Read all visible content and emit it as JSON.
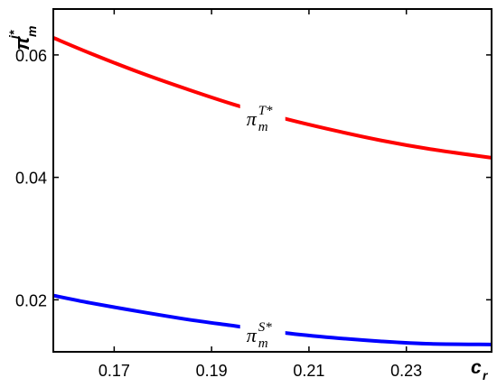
{
  "chart_data": {
    "type": "line",
    "xlabel": {
      "base": "c",
      "sub": "r"
    },
    "ylabel": {
      "base": "π",
      "sup": "j*",
      "sub": "m"
    },
    "xlim": [
      0.1575,
      0.2475
    ],
    "ylim": [
      0.0115,
      0.0675
    ],
    "xticks": [
      "0.17",
      "0.19",
      "0.21",
      "0.23"
    ],
    "xtick_values": [
      0.17,
      0.19,
      0.21,
      0.23
    ],
    "yticks": [
      "0.02",
      "0.04",
      "0.06"
    ],
    "ytick_values": [
      0.02,
      0.04,
      0.06
    ],
    "grid": false,
    "legend": "none",
    "series": [
      {
        "color": "#ff0000",
        "x": [
          0.1575,
          0.165,
          0.175,
          0.185,
          0.195,
          0.205,
          0.215,
          0.225,
          0.235,
          0.2475
        ],
        "y": [
          0.0628,
          0.0603,
          0.0572,
          0.0544,
          0.0518,
          0.0496,
          0.0477,
          0.046,
          0.0446,
          0.0432
        ]
      },
      {
        "color": "#0000ff",
        "x": [
          0.1575,
          0.165,
          0.175,
          0.185,
          0.195,
          0.205,
          0.215,
          0.225,
          0.235,
          0.2475
        ],
        "y": [
          0.0207,
          0.0195,
          0.0181,
          0.0168,
          0.0157,
          0.0146,
          0.0138,
          0.0132,
          0.0128,
          0.0127
        ]
      }
    ],
    "annotations": [
      {
        "base": "π",
        "sup": "T*",
        "sub": "m",
        "x": 0.2005,
        "y": 0.0497
      },
      {
        "base": "π",
        "sup": "S*",
        "sub": "m",
        "x": 0.2005,
        "y": 0.0143
      }
    ]
  }
}
